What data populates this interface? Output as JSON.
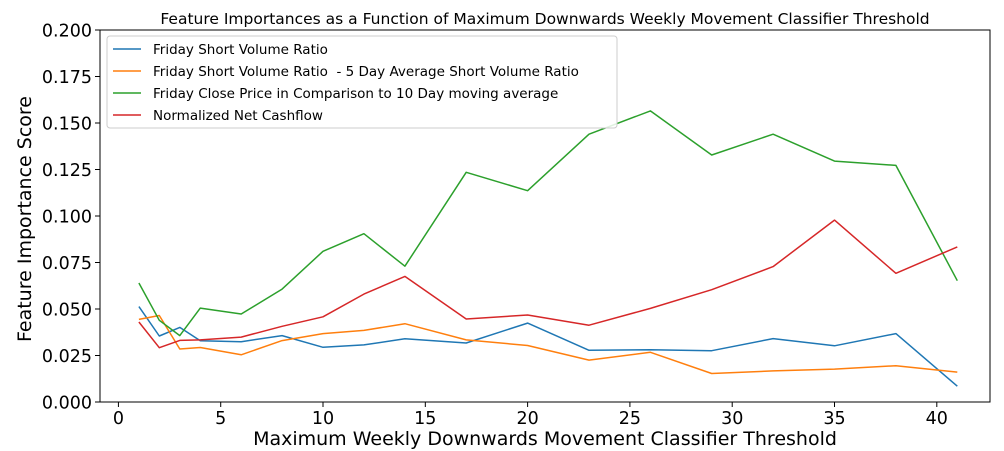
{
  "chart_data": {
    "type": "line",
    "title": "Feature Importances as a Function of Maximum Downwards Weekly Movement Classifier Threshold",
    "xlabel": "Maximum Weekly Downwards Movement Classifier Threshold",
    "ylabel": "Feature Importance Score",
    "xlim": [
      -0.9,
      42.6
    ],
    "ylim": [
      0.0,
      0.2
    ],
    "xticks": [
      0,
      5,
      10,
      15,
      20,
      25,
      30,
      35,
      40
    ],
    "xtick_labels": [
      "0",
      "5",
      "10",
      "15",
      "20",
      "25",
      "30",
      "35",
      "40"
    ],
    "yticks": [
      0.0,
      0.025,
      0.05,
      0.075,
      0.1,
      0.125,
      0.15,
      0.175,
      0.2
    ],
    "ytick_labels": [
      "0.000",
      "0.025",
      "0.050",
      "0.075",
      "0.100",
      "0.125",
      "0.150",
      "0.175",
      "0.200"
    ],
    "grid": false,
    "legend_position": "top-left",
    "x": [
      1,
      2,
      3,
      4,
      6,
      8,
      10,
      12,
      14,
      17,
      20,
      23,
      26,
      29,
      32,
      35,
      38,
      41
    ],
    "series": [
      {
        "name": "Friday Short Volume Ratio",
        "color": "#1f77b4",
        "values": [
          0.0513,
          0.0355,
          0.0401,
          0.0329,
          0.0324,
          0.0357,
          0.0294,
          0.0307,
          0.034,
          0.0317,
          0.0424,
          0.0278,
          0.0281,
          0.0276,
          0.0341,
          0.0302,
          0.0368,
          0.0085
        ]
      },
      {
        "name": "Friday Short Volume Ratio  - 5 Day Average Short Volume Ratio",
        "color": "#ff7f0e",
        "values": [
          0.0444,
          0.0465,
          0.0285,
          0.0293,
          0.0254,
          0.033,
          0.0368,
          0.0385,
          0.0421,
          0.0334,
          0.0304,
          0.0225,
          0.0267,
          0.0153,
          0.0167,
          0.0177,
          0.0195,
          0.0161
        ]
      },
      {
        "name": "Friday Close Price in Comparison to 10 Day moving average",
        "color": "#2ca02c",
        "values": [
          0.064,
          0.0439,
          0.0357,
          0.0505,
          0.0473,
          0.0607,
          0.081,
          0.0905,
          0.073,
          0.1235,
          0.1136,
          0.144,
          0.1565,
          0.1328,
          0.144,
          0.1295,
          0.1272,
          0.0652
        ]
      },
      {
        "name": "Normalized Net Cashflow",
        "color": "#d62728",
        "values": [
          0.043,
          0.0292,
          0.0331,
          0.0334,
          0.0349,
          0.0407,
          0.0458,
          0.058,
          0.0675,
          0.0446,
          0.0468,
          0.0413,
          0.0503,
          0.0604,
          0.0728,
          0.0978,
          0.0692,
          0.0834
        ]
      }
    ]
  }
}
